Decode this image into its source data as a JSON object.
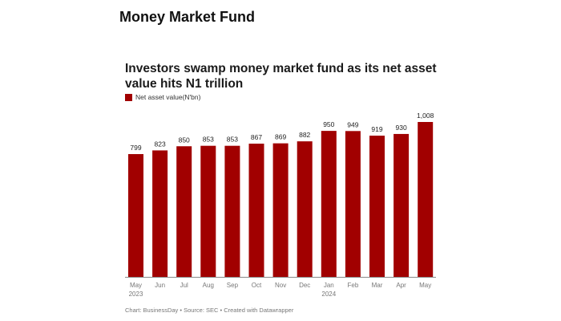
{
  "header": "Money Market Fund",
  "chart_data": {
    "type": "bar",
    "title": "Investors swamp money market fund as its net asset value hits N1 trillion",
    "legend": [
      "Net asset value(N'bn)"
    ],
    "categories": [
      "May",
      "Jun",
      "Jul",
      "Aug",
      "Sep",
      "Oct",
      "Nov",
      "Dec",
      "Jan",
      "Feb",
      "Mar",
      "Apr",
      "May"
    ],
    "sublabels": [
      "2023",
      "",
      "",
      "",
      "",
      "",
      "",
      "",
      "2024",
      "",
      "",
      "",
      ""
    ],
    "values": [
      799,
      823,
      850,
      853,
      853,
      867,
      869,
      882,
      950,
      949,
      919,
      930,
      1008
    ],
    "value_labels": [
      "799",
      "823",
      "850",
      "853",
      "853",
      "867",
      "869",
      "882",
      "950",
      "949",
      "919",
      "930",
      "1,008"
    ],
    "ylim": [
      0,
      1008
    ],
    "color": "#a10000",
    "grid": false
  },
  "source": "Chart: BusinessDay • Source: SEC • Created with Datawrapper"
}
